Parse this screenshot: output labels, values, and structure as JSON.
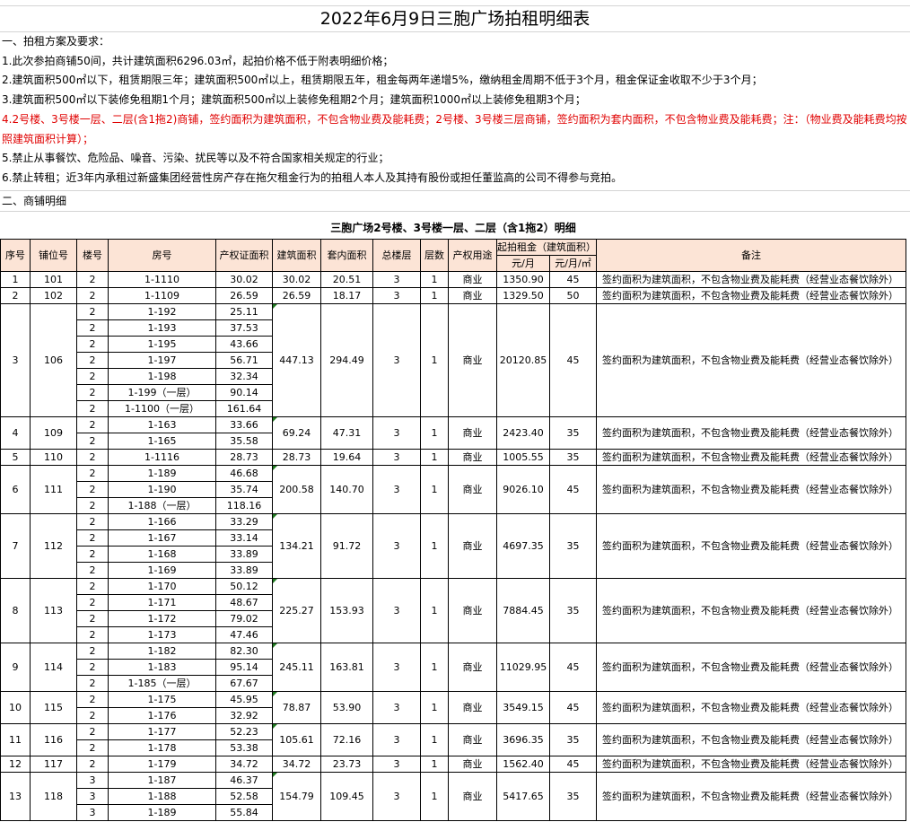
{
  "title": "2022年6月9日三胞广场拍租明细表",
  "section1": {
    "heading": "一、拍租方案及要求：",
    "items": [
      "1.此次参拍商铺50间，共计建筑面积6296.03㎡，起拍价格不低于附表明细价格；",
      "2.建筑面积500㎡以下，租赁期限三年；建筑面积500㎡以上，租赁期限五年，租金每两年递增5%，缴纳租金周期不低于3个月，租金保证金收取不少于3个月；",
      "3.建筑面积500㎡以下装修免租期1个月；建筑面积500㎡以上装修免租期2个月；建筑面积1000㎡以上装修免租期3个月；",
      "4.2号楼、3号楼一层、二层(含1拖2)商铺，签约面积为建筑面积，不包含物业费及能耗费；2号楼、3号楼三层商铺，签约面积为套内面积，不包含物业费及能耗费；注：（物业费及能耗费均按照建筑面积计算）；",
      "5.禁止从事餐饮、危险品、噪音、污染、扰民等以及不符合国家相关规定的行业；",
      "6.禁止转租；近3年内承租过新盛集团经营性房产存在拖欠租金行为的拍租人本人及其持有股份或担任董监高的公司不得参与竞拍。"
    ],
    "highlight_color": "#e00000"
  },
  "section2": {
    "heading": "二、商铺明细"
  },
  "table": {
    "title": "三胞广场2号楼、3号楼一层、二层（含1拖2）明细",
    "header_color": "#fce4d6",
    "headers": {
      "seq": "序号",
      "shop": "铺位号",
      "bldg": "楼号",
      "room": "房号",
      "cert": "产权证面积",
      "area": "建筑面积",
      "inner": "套内面积",
      "floors": "总楼层",
      "floor": "层数",
      "use": "产权用途",
      "rent": "起拍租金（建筑面积）",
      "rent_month": "元/月",
      "rent_unit": "元/月/㎡",
      "note": "备注"
    },
    "shops": [
      {
        "seq": "1",
        "shop": "101",
        "area": "30.02",
        "inner": "20.51",
        "floors": "3",
        "floor": "1",
        "use": "商业",
        "rent": "1350.90",
        "unit": "45",
        "note": "签约面积为建筑面积，不包含物业费及能耗费（经营业态餐饮除外）",
        "rooms": [
          [
            "2",
            "1-1110",
            "30.02"
          ]
        ]
      },
      {
        "seq": "2",
        "shop": "102",
        "area": "26.59",
        "inner": "18.17",
        "floors": "3",
        "floor": "1",
        "use": "商业",
        "rent": "1329.50",
        "unit": "50",
        "note": "签约面积为建筑面积，不包含物业费及能耗费（经营业态餐饮除外）",
        "rooms": [
          [
            "2",
            "1-1109",
            "26.59"
          ]
        ]
      },
      {
        "seq": "3",
        "shop": "106",
        "area": "447.13",
        "inner": "294.49",
        "floors": "3",
        "floor": "1",
        "use": "商业",
        "rent": "20120.85",
        "unit": "45",
        "note": "签约面积为建筑面积，不包含物业费及能耗费（经营业态餐饮除外）",
        "rooms": [
          [
            "2",
            "1-192",
            "25.11"
          ],
          [
            "2",
            "1-193",
            "37.53"
          ],
          [
            "2",
            "1-195",
            "43.66"
          ],
          [
            "2",
            "1-197",
            "56.71"
          ],
          [
            "2",
            "1-198",
            "32.34"
          ],
          [
            "2",
            "1-199（一层）",
            "90.14"
          ],
          [
            "2",
            "1-1100（一层）",
            "161.64"
          ]
        ]
      },
      {
        "seq": "4",
        "shop": "109",
        "area": "69.24",
        "inner": "47.31",
        "floors": "3",
        "floor": "1",
        "use": "商业",
        "rent": "2423.40",
        "unit": "35",
        "note": "签约面积为建筑面积，不包含物业费及能耗费（经营业态餐饮除外）",
        "rooms": [
          [
            "2",
            "1-163",
            "33.66"
          ],
          [
            "2",
            "1-165",
            "35.58"
          ]
        ]
      },
      {
        "seq": "5",
        "shop": "110",
        "area": "28.73",
        "inner": "19.64",
        "floors": "3",
        "floor": "1",
        "use": "商业",
        "rent": "1005.55",
        "unit": "35",
        "note": "签约面积为建筑面积，不包含物业费及能耗费（经营业态餐饮除外）",
        "rooms": [
          [
            "2",
            "1-1116",
            "28.73"
          ]
        ]
      },
      {
        "seq": "6",
        "shop": "111",
        "area": "200.58",
        "inner": "140.70",
        "floors": "3",
        "floor": "1",
        "use": "商业",
        "rent": "9026.10",
        "unit": "45",
        "note": "签约面积为建筑面积，不包含物业费及能耗费（经营业态餐饮除外）",
        "rooms": [
          [
            "2",
            "1-189",
            "46.68"
          ],
          [
            "2",
            "1-190",
            "35.74"
          ],
          [
            "2",
            "1-188（一层）",
            "118.16"
          ]
        ]
      },
      {
        "seq": "7",
        "shop": "112",
        "area": "134.21",
        "inner": "91.72",
        "floors": "3",
        "floor": "1",
        "use": "商业",
        "rent": "4697.35",
        "unit": "35",
        "note": "签约面积为建筑面积，不包含物业费及能耗费（经营业态餐饮除外）",
        "rooms": [
          [
            "2",
            "1-166",
            "33.29"
          ],
          [
            "2",
            "1-167",
            "33.14"
          ],
          [
            "2",
            "1-168",
            "33.89"
          ],
          [
            "2",
            "1-169",
            "33.89"
          ]
        ]
      },
      {
        "seq": "8",
        "shop": "113",
        "area": "225.27",
        "inner": "153.93",
        "floors": "3",
        "floor": "1",
        "use": "商业",
        "rent": "7884.45",
        "unit": "35",
        "note": "签约面积为建筑面积，不包含物业费及能耗费（经营业态餐饮除外）",
        "rooms": [
          [
            "2",
            "1-170",
            "50.12"
          ],
          [
            "2",
            "1-171",
            "48.67"
          ],
          [
            "2",
            "1-172",
            "79.02"
          ],
          [
            "2",
            "1-173",
            "47.46"
          ]
        ]
      },
      {
        "seq": "9",
        "shop": "114",
        "area": "245.11",
        "inner": "163.81",
        "floors": "3",
        "floor": "1",
        "use": "商业",
        "rent": "11029.95",
        "unit": "45",
        "note": "签约面积为建筑面积，不包含物业费及能耗费（经营业态餐饮除外）",
        "rooms": [
          [
            "2",
            "1-182",
            "82.30"
          ],
          [
            "2",
            "1-183",
            "95.14"
          ],
          [
            "2",
            "1-185（一层）",
            "67.67"
          ]
        ]
      },
      {
        "seq": "10",
        "shop": "115",
        "area": "78.87",
        "inner": "53.90",
        "floors": "3",
        "floor": "1",
        "use": "商业",
        "rent": "3549.15",
        "unit": "45",
        "note": "签约面积为建筑面积，不包含物业费及能耗费（经营业态餐饮除外）",
        "rooms": [
          [
            "2",
            "1-175",
            "45.95"
          ],
          [
            "2",
            "1-176",
            "32.92"
          ]
        ]
      },
      {
        "seq": "11",
        "shop": "116",
        "area": "105.61",
        "inner": "72.16",
        "floors": "3",
        "floor": "1",
        "use": "商业",
        "rent": "3696.35",
        "unit": "35",
        "note": "签约面积为建筑面积，不包含物业费及能耗费（经营业态餐饮除外）",
        "rooms": [
          [
            "2",
            "1-177",
            "52.23"
          ],
          [
            "2",
            "1-178",
            "53.38"
          ]
        ]
      },
      {
        "seq": "12",
        "shop": "117",
        "area": "34.72",
        "inner": "23.73",
        "floors": "3",
        "floor": "1",
        "use": "商业",
        "rent": "1562.40",
        "unit": "45",
        "note": "签约面积为建筑面积，不包含物业费及能耗费（经营业态餐饮除外）",
        "rooms": [
          [
            "2",
            "1-179",
            "34.72"
          ]
        ]
      },
      {
        "seq": "13",
        "shop": "118",
        "area": "154.79",
        "inner": "109.45",
        "floors": "3",
        "floor": "1",
        "use": "商业",
        "rent": "5417.65",
        "unit": "35",
        "note": "签约面积为建筑面积，不包含物业费及能耗费（经营业态餐饮除外）",
        "rooms": [
          [
            "3",
            "1-187",
            "46.37"
          ],
          [
            "3",
            "1-188",
            "52.58"
          ],
          [
            "3",
            "1-189",
            "55.84"
          ]
        ]
      }
    ]
  }
}
